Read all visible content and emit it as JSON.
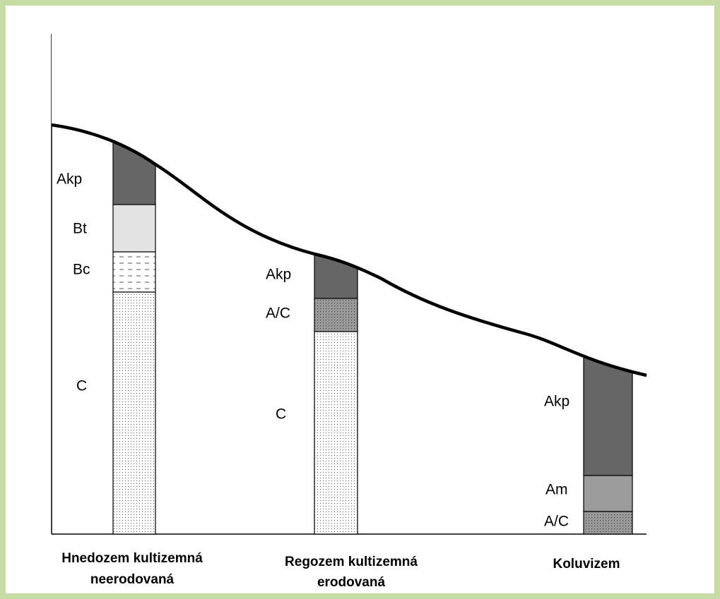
{
  "profiles": [
    {
      "name": [
        "Hnedozem kultizemná",
        "neerodovaná"
      ],
      "horizons": [
        "Akp",
        "Bt",
        "Bc",
        "C"
      ]
    },
    {
      "name": [
        "Regozem kultizemná",
        "erodovaná"
      ],
      "horizons": [
        "Akp",
        "A/C",
        "C"
      ]
    },
    {
      "name": [
        "Koluvizem"
      ],
      "horizons": [
        "Akp",
        "Am",
        "A/C"
      ]
    }
  ]
}
